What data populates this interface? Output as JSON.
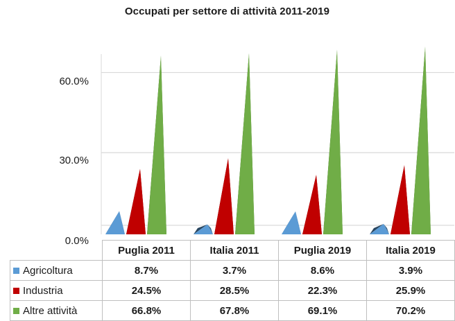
{
  "chart_data": {
    "type": "bar",
    "title": "Occupati per settore di attività 2011-2019",
    "categories": [
      "Puglia 2011",
      "Italia 2011",
      "Puglia 2019",
      "Italia 2019"
    ],
    "series": [
      {
        "name": "Agricoltura",
        "values": [
          8.7,
          3.7,
          8.6,
          3.9
        ],
        "labels": [
          "8.7%",
          "3.7%",
          "8.6%",
          "3.9%"
        ],
        "color": "#5b9bd5"
      },
      {
        "name": "Industria",
        "values": [
          24.5,
          28.5,
          22.3,
          25.9
        ],
        "labels": [
          "24.5%",
          "28.5%",
          "22.3%",
          "25.9%"
        ],
        "color": "#c00000"
      },
      {
        "name": "Altre attività",
        "values": [
          66.8,
          67.8,
          69.1,
          70.2
        ],
        "labels": [
          "66.8%",
          "67.8%",
          "69.1%",
          "70.2%"
        ],
        "color": "#70ad47"
      }
    ],
    "yticks": [
      "0.0%",
      "30.0%",
      "60.0%"
    ],
    "ylim": [
      0,
      70
    ],
    "grid": true,
    "legend": "data-table"
  }
}
